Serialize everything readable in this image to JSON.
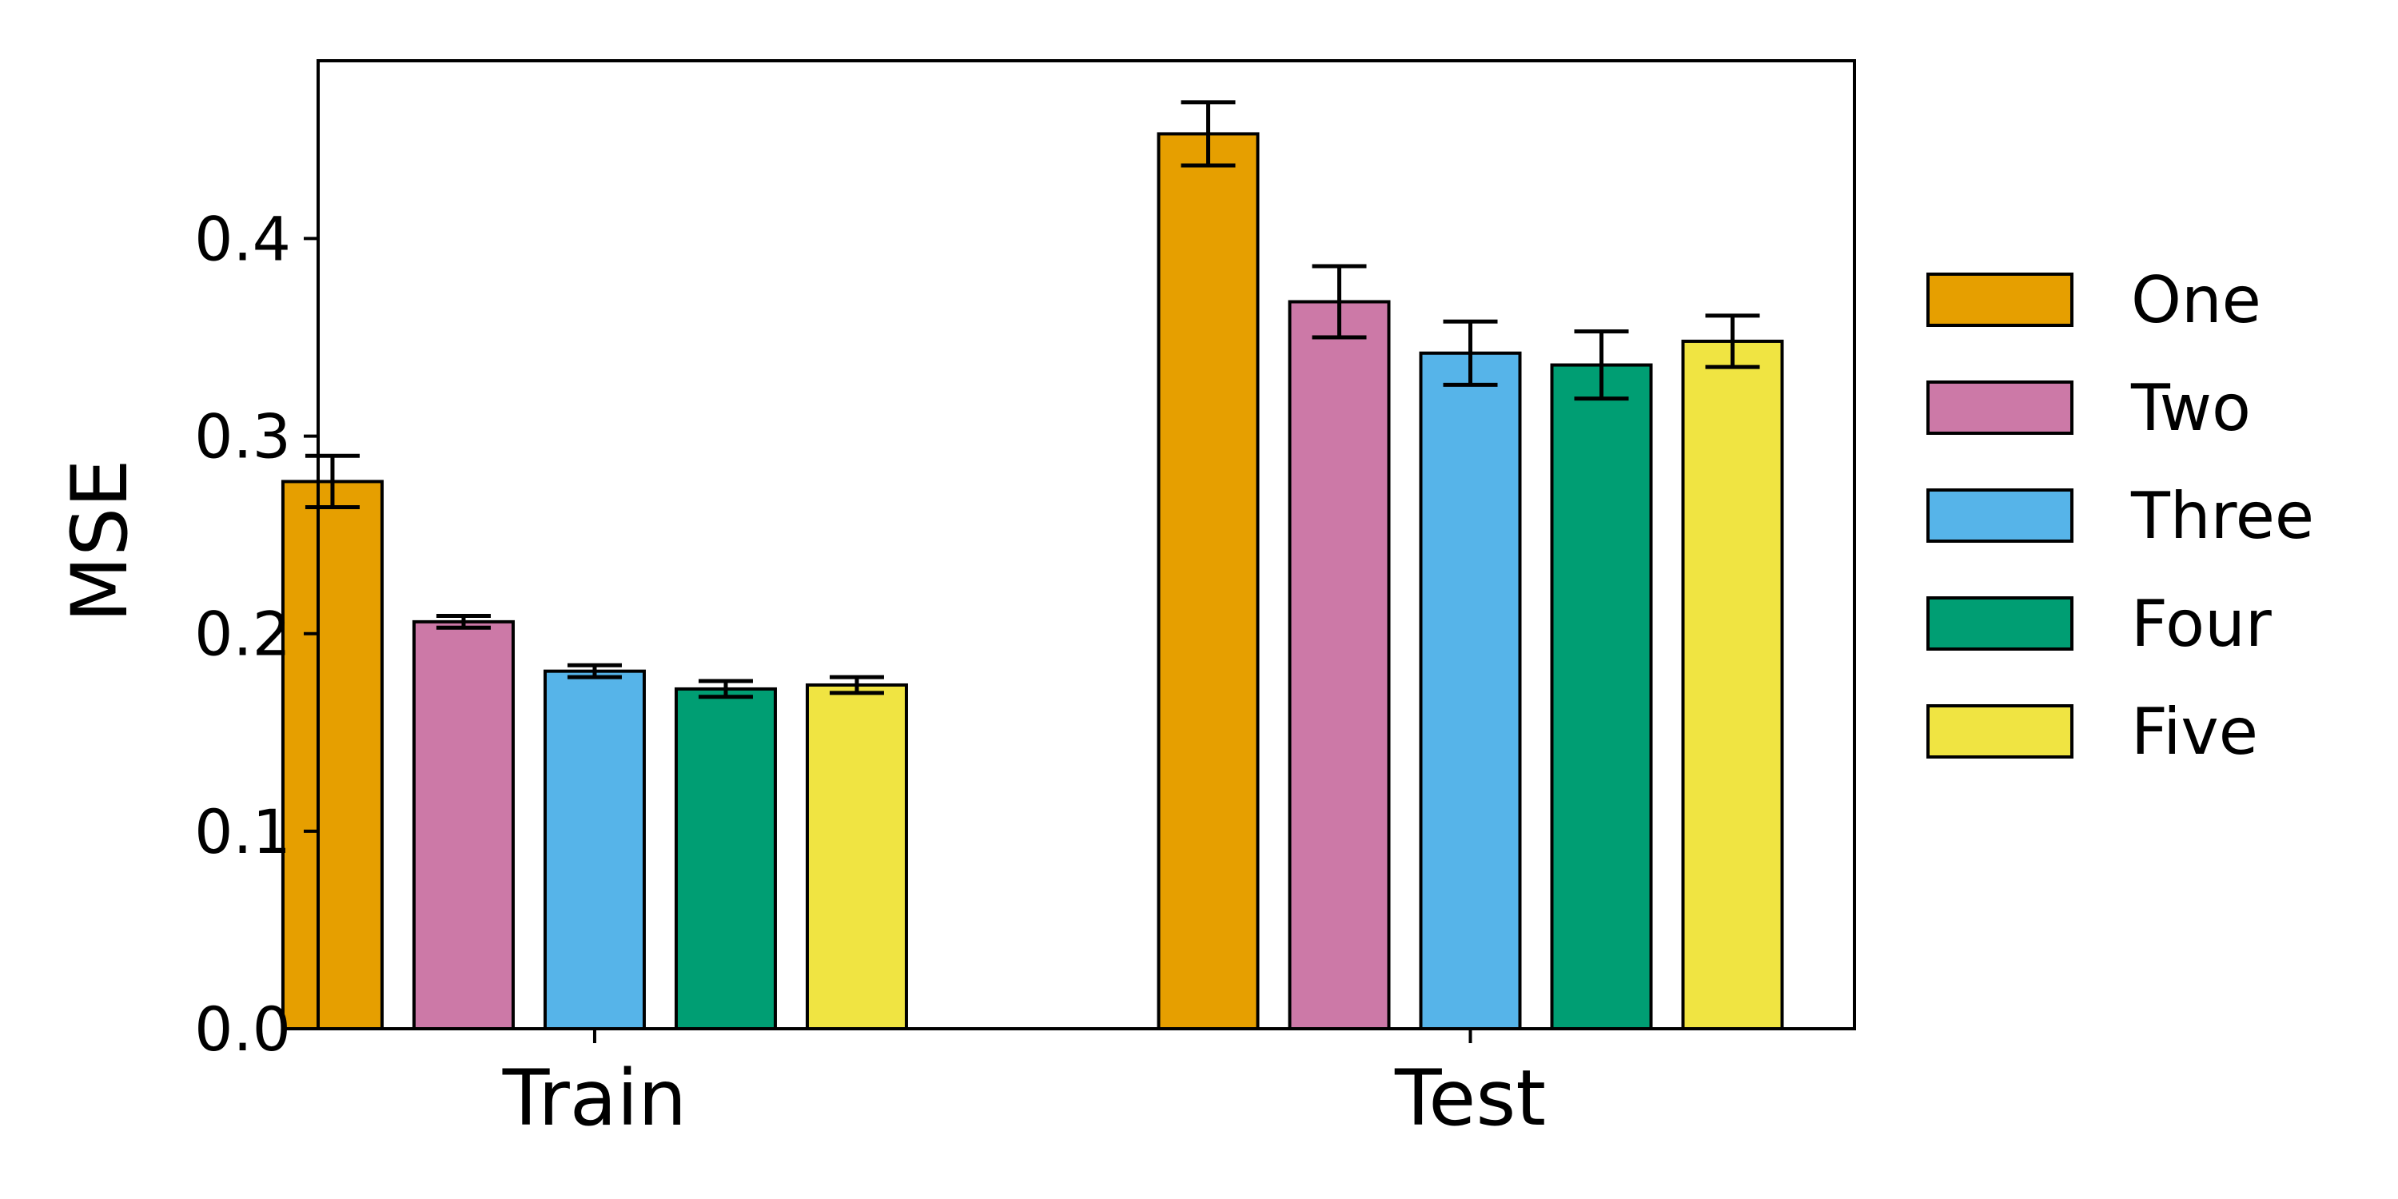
{
  "chart_data": {
    "type": "bar",
    "categories": [
      "Train",
      "Test"
    ],
    "ylabel": "MSE",
    "xlabel": "",
    "ylim": [
      0,
      0.49
    ],
    "yticks": [
      0.0,
      0.1,
      0.2,
      0.3,
      0.4
    ],
    "ytick_labels": [
      "0.0",
      "0.1",
      "0.2",
      "0.3",
      "0.4"
    ],
    "grid": false,
    "legend_position": "right",
    "series": [
      {
        "name": "One",
        "color": "#E69F00",
        "values": [
          0.277,
          0.453
        ],
        "errors": [
          0.013,
          0.016
        ]
      },
      {
        "name": "Two",
        "color": "#CC79A7",
        "values": [
          0.206,
          0.368
        ],
        "errors": [
          0.003,
          0.018
        ]
      },
      {
        "name": "Three",
        "color": "#56B4E9",
        "values": [
          0.181,
          0.342
        ],
        "errors": [
          0.003,
          0.016
        ]
      },
      {
        "name": "Four",
        "color": "#009E73",
        "values": [
          0.172,
          0.336
        ],
        "errors": [
          0.004,
          0.017
        ]
      },
      {
        "name": "Five",
        "color": "#F0E442",
        "values": [
          0.174,
          0.348
        ],
        "errors": [
          0.004,
          0.013
        ]
      }
    ]
  }
}
